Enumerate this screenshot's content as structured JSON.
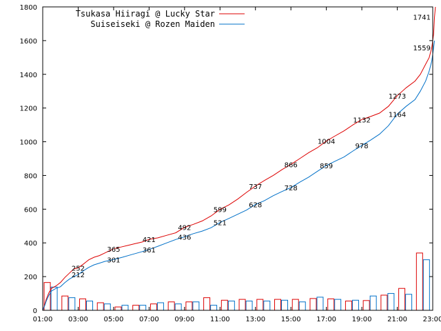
{
  "chart_data": {
    "type": "line",
    "title": "",
    "xlabel": "",
    "ylabel": "",
    "legend_position": "top-left",
    "grid": false,
    "xlim": [
      1,
      23
    ],
    "ylim": [
      0,
      1800
    ],
    "x_ticks": [
      {
        "v": 1,
        "label": "01:00"
      },
      {
        "v": 3,
        "label": "03:00"
      },
      {
        "v": 5,
        "label": "05:00"
      },
      {
        "v": 7,
        "label": "07:00"
      },
      {
        "v": 9,
        "label": "09:00"
      },
      {
        "v": 11,
        "label": "11:00"
      },
      {
        "v": 13,
        "label": "13:00"
      },
      {
        "v": 15,
        "label": "15:00"
      },
      {
        "v": 17,
        "label": "17:00"
      },
      {
        "v": 19,
        "label": "19:00"
      },
      {
        "v": 21,
        "label": "21:00"
      },
      {
        "v": 23,
        "label": "23:00"
      }
    ],
    "y_ticks": [
      {
        "v": 0,
        "label": "0"
      },
      {
        "v": 200,
        "label": "200"
      },
      {
        "v": 400,
        "label": "400"
      },
      {
        "v": 600,
        "label": "600"
      },
      {
        "v": 800,
        "label": "800"
      },
      {
        "v": 1000,
        "label": "1000"
      },
      {
        "v": 1200,
        "label": "1200"
      },
      {
        "v": 1400,
        "label": "1400"
      },
      {
        "v": 1600,
        "label": "1600"
      },
      {
        "v": 1800,
        "label": "1800"
      }
    ],
    "series": [
      {
        "name": "Tsukasa Hiiragi @ Lucky Star",
        "color": "#dd0000",
        "points": [
          [
            1.0,
            0
          ],
          [
            1.1,
            30
          ],
          [
            1.2,
            65
          ],
          [
            1.35,
            105
          ],
          [
            1.5,
            130
          ],
          [
            1.75,
            145
          ],
          [
            2.0,
            165
          ],
          [
            2.25,
            195
          ],
          [
            2.5,
            220
          ],
          [
            2.75,
            245
          ],
          [
            3.0,
            252
          ],
          [
            3.3,
            275
          ],
          [
            3.6,
            300
          ],
          [
            3.9,
            315
          ],
          [
            4.2,
            325
          ],
          [
            4.5,
            340
          ],
          [
            4.8,
            355
          ],
          [
            5.0,
            365
          ],
          [
            5.4,
            375
          ],
          [
            5.8,
            385
          ],
          [
            6.2,
            395
          ],
          [
            6.6,
            405
          ],
          [
            7.0,
            421
          ],
          [
            7.5,
            430
          ],
          [
            8.0,
            445
          ],
          [
            8.5,
            460
          ],
          [
            9.0,
            492
          ],
          [
            9.5,
            510
          ],
          [
            10.0,
            530
          ],
          [
            10.5,
            560
          ],
          [
            11.0,
            599
          ],
          [
            11.5,
            625
          ],
          [
            12.0,
            660
          ],
          [
            12.5,
            700
          ],
          [
            13.0,
            737
          ],
          [
            13.5,
            770
          ],
          [
            14.0,
            800
          ],
          [
            14.5,
            835
          ],
          [
            15.0,
            866
          ],
          [
            15.5,
            900
          ],
          [
            16.0,
            935
          ],
          [
            16.5,
            965
          ],
          [
            17.0,
            1004
          ],
          [
            17.5,
            1035
          ],
          [
            18.0,
            1065
          ],
          [
            18.5,
            1100
          ],
          [
            19.0,
            1132
          ],
          [
            19.5,
            1150
          ],
          [
            20.0,
            1170
          ],
          [
            20.5,
            1210
          ],
          [
            21.0,
            1273
          ],
          [
            21.5,
            1320
          ],
          [
            22.0,
            1360
          ],
          [
            22.3,
            1400
          ],
          [
            22.6,
            1460
          ],
          [
            22.8,
            1500
          ],
          [
            22.95,
            1560
          ],
          [
            23.05,
            1640
          ],
          [
            23.1,
            1741
          ],
          [
            23.15,
            1800
          ]
        ]
      },
      {
        "name": "Suiseiseki @ Rozen Maiden",
        "color": "#0070c8",
        "points": [
          [
            1.0,
            0
          ],
          [
            1.1,
            25
          ],
          [
            1.2,
            55
          ],
          [
            1.35,
            90
          ],
          [
            1.5,
            115
          ],
          [
            1.75,
            130
          ],
          [
            2.0,
            140
          ],
          [
            2.25,
            165
          ],
          [
            2.5,
            185
          ],
          [
            2.75,
            200
          ],
          [
            3.0,
            212
          ],
          [
            3.3,
            235
          ],
          [
            3.6,
            255
          ],
          [
            3.9,
            270
          ],
          [
            4.2,
            280
          ],
          [
            4.5,
            290
          ],
          [
            5.0,
            301
          ],
          [
            5.5,
            315
          ],
          [
            6.0,
            330
          ],
          [
            6.5,
            345
          ],
          [
            7.0,
            361
          ],
          [
            7.5,
            380
          ],
          [
            8.0,
            400
          ],
          [
            8.5,
            420
          ],
          [
            9.0,
            436
          ],
          [
            9.5,
            455
          ],
          [
            10.0,
            470
          ],
          [
            10.5,
            490
          ],
          [
            11.0,
            521
          ],
          [
            11.5,
            545
          ],
          [
            12.0,
            570
          ],
          [
            12.5,
            595
          ],
          [
            13.0,
            628
          ],
          [
            13.5,
            650
          ],
          [
            14.0,
            680
          ],
          [
            14.5,
            705
          ],
          [
            15.0,
            728
          ],
          [
            15.5,
            760
          ],
          [
            16.0,
            790
          ],
          [
            16.5,
            825
          ],
          [
            17.0,
            859
          ],
          [
            17.5,
            885
          ],
          [
            18.0,
            910
          ],
          [
            18.5,
            945
          ],
          [
            19.0,
            978
          ],
          [
            19.5,
            1010
          ],
          [
            20.0,
            1045
          ],
          [
            20.5,
            1095
          ],
          [
            21.0,
            1164
          ],
          [
            21.5,
            1210
          ],
          [
            22.0,
            1250
          ],
          [
            22.3,
            1300
          ],
          [
            22.6,
            1360
          ],
          [
            22.8,
            1420
          ],
          [
            22.95,
            1480
          ],
          [
            23.05,
            1559
          ],
          [
            23.1,
            1600
          ]
        ]
      }
    ],
    "bars": {
      "hours": [
        1,
        2,
        3,
        4,
        5,
        6,
        7,
        8,
        9,
        10,
        11,
        12,
        13,
        14,
        15,
        16,
        17,
        18,
        19,
        20,
        21,
        22,
        23
      ],
      "series": [
        {
          "name": "Tsukasa Hiiragi @ Lucky Star",
          "color": "#dd0000",
          "values": [
            165,
            85,
            68,
            45,
            20,
            30,
            38,
            50,
            50,
            75,
            60,
            65,
            65,
            65,
            65,
            70,
            68,
            55,
            58,
            90,
            130,
            340
          ]
        },
        {
          "name": "Suiseiseki @ Rozen Maiden",
          "color": "#0070c8",
          "values": [
            138,
            75,
            55,
            38,
            30,
            30,
            45,
            38,
            50,
            30,
            55,
            55,
            55,
            60,
            50,
            78,
            65,
            60,
            85,
            100,
            95,
            300
          ]
        }
      ]
    },
    "data_labels": [
      {
        "series": 0,
        "x": 3.0,
        "value": "252"
      },
      {
        "series": 0,
        "x": 5.0,
        "value": "365"
      },
      {
        "series": 0,
        "x": 7.0,
        "value": "421"
      },
      {
        "series": 0,
        "x": 9.0,
        "value": "492"
      },
      {
        "series": 0,
        "x": 11.0,
        "value": "599"
      },
      {
        "series": 0,
        "x": 13.0,
        "value": "737"
      },
      {
        "series": 0,
        "x": 15.0,
        "value": "866"
      },
      {
        "series": 0,
        "x": 17.0,
        "value": "1004"
      },
      {
        "series": 0,
        "x": 19.0,
        "value": "1132"
      },
      {
        "series": 0,
        "x": 21.0,
        "value": "1273"
      },
      {
        "series": 0,
        "x": 23.1,
        "value": "1741"
      },
      {
        "series": 1,
        "x": 3.0,
        "value": "212"
      },
      {
        "series": 1,
        "x": 5.0,
        "value": "301"
      },
      {
        "series": 1,
        "x": 7.0,
        "value": "361"
      },
      {
        "series": 1,
        "x": 9.0,
        "value": "436"
      },
      {
        "series": 1,
        "x": 11.0,
        "value": "521"
      },
      {
        "series": 1,
        "x": 13.0,
        "value": "628"
      },
      {
        "series": 1,
        "x": 15.0,
        "value": "728"
      },
      {
        "series": 1,
        "x": 17.0,
        "value": "859"
      },
      {
        "series": 1,
        "x": 19.0,
        "value": "978"
      },
      {
        "series": 1,
        "x": 21.0,
        "value": "1164"
      },
      {
        "series": 1,
        "x": 23.05,
        "value": "1559"
      }
    ]
  }
}
